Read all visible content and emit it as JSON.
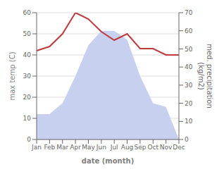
{
  "chart_data": {
    "type": "line",
    "categories": [
      "Jan",
      "Feb",
      "Mar",
      "Apr",
      "May",
      "Jun",
      "Jul",
      "Aug",
      "Sep",
      "Oct",
      "Nov",
      "Dec"
    ],
    "xlabel": "date (month)",
    "ylabel": "max temp (C)",
    "y2label": "med. precipitation\n(kg/m2)",
    "series": [
      {
        "type": "area",
        "axis": "y2",
        "color": "#c8d0f0",
        "values": [
          14,
          14,
          20,
          35,
          52,
          60,
          60,
          55,
          35,
          20,
          18,
          0
        ]
      },
      {
        "type": "line",
        "color": "#c0393b",
        "values": [
          42,
          44,
          50,
          60,
          57,
          51,
          47,
          50,
          43,
          43,
          40,
          40
        ]
      }
    ],
    "ylim": [
      0,
      60
    ],
    "yticks": [
      0,
      10,
      20,
      30,
      40,
      50,
      60
    ],
    "y2lim": [
      0,
      70
    ],
    "y2ticks": [
      0,
      10,
      20,
      30,
      40,
      50,
      60,
      70
    ],
    "grid": true
  }
}
